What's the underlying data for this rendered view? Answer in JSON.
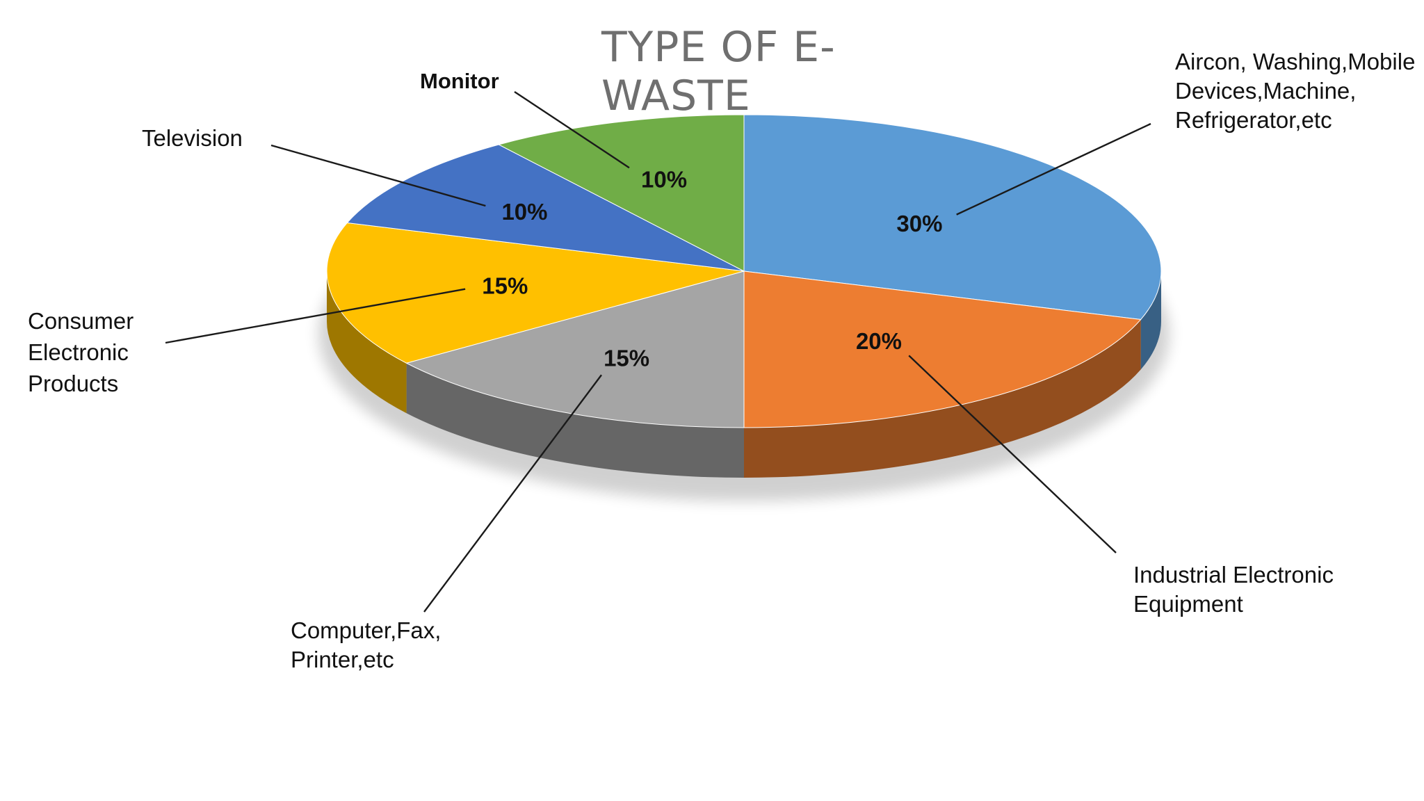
{
  "chart_data": {
    "type": "pie",
    "title_lines": [
      "TYPE OF E-",
      "WASTE"
    ],
    "three_d": true,
    "slices": [
      {
        "category_lines": [
          "Aircon, Washing,Mobile",
          "Devices,Machine,",
          "Refrigerator,etc"
        ],
        "value": 30,
        "label": "30%",
        "color": "#5b9bd5"
      },
      {
        "category_lines": [
          "Industrial Electronic",
          "Equipment"
        ],
        "value": 20,
        "label": "20%",
        "color": "#ed7d31"
      },
      {
        "category_lines": [
          "Computer,Fax,",
          "Printer,etc"
        ],
        "value": 15,
        "label": "15%",
        "color": "#a5a5a5"
      },
      {
        "category_lines": [
          "Consumer",
          "Electronic",
          "Products"
        ],
        "value": 15,
        "label": "15%",
        "color": "#ffc000"
      },
      {
        "category_lines": [
          "Television"
        ],
        "value": 10,
        "label": "10%",
        "color": "#4472c4"
      },
      {
        "category_lines": [
          "Monitor"
        ],
        "value": 10,
        "label": "10%",
        "color": "#70ad47"
      }
    ]
  }
}
